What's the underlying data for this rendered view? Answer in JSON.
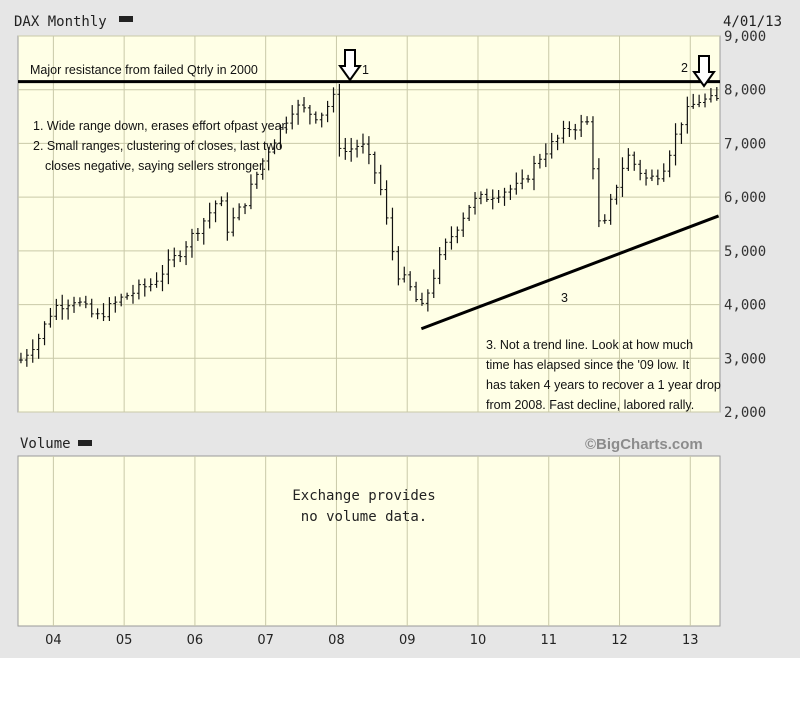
{
  "header": {
    "title": "DAX Monthly",
    "date": "4/01/13"
  },
  "volume_panel": {
    "title": "Volume",
    "brand": "©BigCharts.com",
    "no_data_line1": "Exchange provides",
    "no_data_line2": "no volume data."
  },
  "annotations": {
    "resistance_label": "Major resistance from failed Qtrly in 2000",
    "arrow1_label": "1",
    "arrow2_label": "2",
    "note1": "1. Wide range down, erases effort ofpast year.",
    "note2a": "2. Small ranges, clustering of closes, last two",
    "note2b": "closes negative, saying sellers stronger.",
    "line3_label": "3",
    "note3a": "3.  Not a trend line.  Look at how much",
    "note3b": "time has elapsed since the '09 low.  It",
    "note3c": "has taken 4 years to recover a 1 year drop",
    "note3d": "from 2008.  Fast decline, labored rally."
  },
  "chart_data": {
    "type": "ohlc",
    "title": "DAX Monthly",
    "ylim": [
      2000,
      9000
    ],
    "yticks": [
      2000,
      3000,
      4000,
      5000,
      6000,
      7000,
      8000,
      9000
    ],
    "ytick_labels": [
      "2,000",
      "3,000",
      "4,000",
      "5,000",
      "6,000",
      "7,000",
      "8,000",
      "9,000"
    ],
    "xlim": [
      2003.5,
      2013.42
    ],
    "x_ticks": [
      2004,
      2005,
      2006,
      2007,
      2008,
      2009,
      2010,
      2011,
      2012,
      2013
    ],
    "x_tick_labels": [
      "04",
      "05",
      "06",
      "07",
      "08",
      "09",
      "10",
      "11",
      "12",
      "13"
    ],
    "grid": true,
    "resistance_level": 8150,
    "line_3": {
      "from": {
        "x": 2009.2,
        "y": 3550
      },
      "to": {
        "x": 2013.4,
        "y": 5650
      }
    },
    "arrows": [
      {
        "label": "1",
        "x": 2008.0
      },
      {
        "label": "2",
        "x": 2013.25
      }
    ],
    "series": [
      {
        "anchors": [
          [
            2003.5,
            2900
          ],
          [
            2003.8,
            3400
          ],
          [
            2004.0,
            3950
          ],
          [
            2004.3,
            4100
          ],
          [
            2004.6,
            3750
          ],
          [
            2005.0,
            4150
          ],
          [
            2005.4,
            4400
          ],
          [
            2005.8,
            5000
          ],
          [
            2006.2,
            5700
          ],
          [
            2006.35,
            6000
          ],
          [
            2006.45,
            5400
          ],
          [
            2006.7,
            5900
          ],
          [
            2007.0,
            6800
          ],
          [
            2007.4,
            7700
          ],
          [
            2007.75,
            7500
          ],
          [
            2008.0,
            7900
          ],
          [
            2008.05,
            6800
          ],
          [
            2008.35,
            7000
          ],
          [
            2008.6,
            6300
          ],
          [
            2008.85,
            4600
          ],
          [
            2009.0,
            4400
          ],
          [
            2009.2,
            3900
          ],
          [
            2009.5,
            5000
          ],
          [
            2009.9,
            5900
          ],
          [
            2010.3,
            6100
          ],
          [
            2010.6,
            6200
          ],
          [
            2010.9,
            6800
          ],
          [
            2011.3,
            7300
          ],
          [
            2011.6,
            7400
          ],
          [
            2011.65,
            5800
          ],
          [
            2011.75,
            5300
          ],
          [
            2011.9,
            6000
          ],
          [
            2012.1,
            6800
          ],
          [
            2012.4,
            6300
          ],
          [
            2012.6,
            6500
          ],
          [
            2012.9,
            7500
          ],
          [
            2013.1,
            7800
          ],
          [
            2013.33,
            7800
          ]
        ]
      }
    ]
  }
}
